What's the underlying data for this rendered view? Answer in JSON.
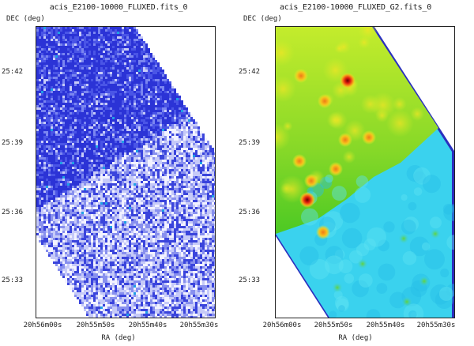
{
  "panels": [
    {
      "title": "acis_E2100-10000_FLUXED.fits_0",
      "ylabel": "DEC (deg)",
      "xlabel": "RA (deg)",
      "y_ticks": [
        "25:42",
        "25:39",
        "25:36",
        "25:33"
      ],
      "x_ticks": [
        "20h56m00s",
        "20h55m50s",
        "20h55m40s",
        "20h55m30s"
      ]
    },
    {
      "title": "acis_E2100-10000_FLUXED_G2.fits_0",
      "ylabel": "DEC (deg)",
      "xlabel": "RA (deg)",
      "y_ticks": [
        "25:42",
        "25:39",
        "25:36",
        "25:33"
      ],
      "x_ticks": [
        "20h56m00s",
        "20h55m50s",
        "20h55m40s",
        "20h55m30s"
      ]
    }
  ],
  "colors": {
    "raw_high": "#2a2fd8",
    "raw_low": "#dcdcff",
    "smooth_high": "#7ed32a",
    "smooth_low": "#3ad2ee",
    "smooth_edge": "#2a2fbf",
    "source_hot": "#e0200f"
  }
}
